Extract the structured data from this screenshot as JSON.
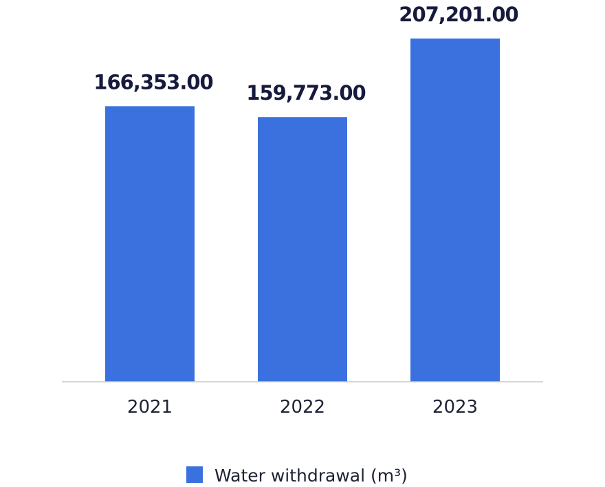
{
  "chart_data": {
    "type": "bar",
    "categories": [
      "2021",
      "2022",
      "2023"
    ],
    "series": [
      {
        "name": "Water withdrawal (m³)",
        "values": [
          166353.0,
          159773.0,
          207201.0
        ],
        "value_labels": [
          "166,353.00",
          "159,773.00",
          "207,201.00"
        ],
        "color": "#3b71de"
      }
    ],
    "title": "",
    "xlabel": "",
    "ylabel": "",
    "ylim": [
      0,
      207201.0
    ],
    "grid": false,
    "legend": "bottom-center"
  },
  "colors": {
    "bar": "#3b71de",
    "axis": "#c8c8c8",
    "value_text": "#161b3d",
    "tick_text": "#1e2233"
  }
}
